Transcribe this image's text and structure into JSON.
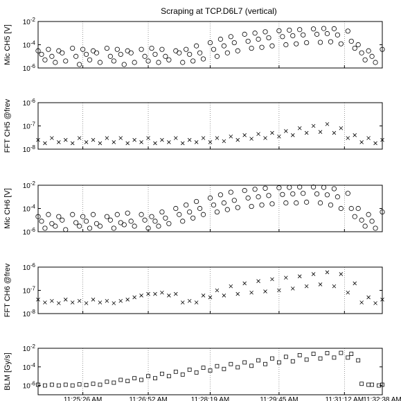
{
  "figure": {
    "title": "Scraping at TCP.D6L7 (vertical)"
  },
  "time_axis": {
    "tick_labels": [
      "11:25:26 AM",
      "11:26:52 AM",
      "11:28:19 AM",
      "11:29:45 AM",
      "11:31:12 AM",
      "11:32:38 AM"
    ]
  },
  "chart_data": [
    {
      "type": "scatter",
      "ylabel": "Mic CH5 [V]",
      "yscale": "log",
      "ylim": [
        1e-06,
        0.01
      ],
      "ytick_labels": [
        "10^-6",
        "10^-4",
        "10^-2"
      ],
      "marker": "circle",
      "grid": "vertical-dotted",
      "series": [
        {
          "x": [
            0.0,
            0.03,
            0.06,
            0.1,
            0.13,
            0.16,
            0.2,
            0.23,
            0.26,
            0.3,
            0.33,
            0.36,
            0.4,
            0.43,
            0.46,
            0.5,
            0.53,
            0.56,
            0.6,
            0.63,
            0.66,
            0.7,
            0.73,
            0.76,
            0.8,
            0.83,
            0.86,
            0.9,
            0.93,
            0.96,
            1.0
          ],
          "values": [
            3e-05,
            4e-05,
            3e-05,
            5e-05,
            4e-05,
            3e-05,
            5e-05,
            4e-05,
            3e-05,
            4e-05,
            5e-05,
            4e-05,
            3e-05,
            4e-05,
            8e-05,
            0.00015,
            0.0003,
            0.0005,
            0.0008,
            0.001,
            0.0013,
            0.0016,
            0.0018,
            0.002,
            0.0023,
            0.0025,
            0.0024,
            0.0015,
            0.0001,
            3e-05,
            4e-05
          ]
        },
        {
          "x": [
            0.01,
            0.04,
            0.07,
            0.11,
            0.14,
            0.17,
            0.21,
            0.24,
            0.27,
            0.31,
            0.34,
            0.37,
            0.41,
            0.44,
            0.47,
            0.51,
            0.54,
            0.57,
            0.61,
            0.64,
            0.67,
            0.71,
            0.74,
            0.77,
            0.81,
            0.84,
            0.87,
            0.91,
            0.94,
            0.97
          ],
          "values": [
            1.5e-05,
            1e-05,
            2e-05,
            1e-05,
            1.5e-05,
            2e-05,
            1e-05,
            1.5e-05,
            2e-05,
            1e-05,
            1.5e-05,
            1e-05,
            2e-05,
            1.5e-05,
            2e-05,
            4e-05,
            8e-05,
            0.00015,
            0.0002,
            0.0003,
            0.0004,
            0.0005,
            0.0006,
            0.0007,
            0.0008,
            0.0009,
            0.0007,
            0.0002,
            2e-05,
            1e-05
          ]
        },
        {
          "x": [
            0.02,
            0.05,
            0.08,
            0.12,
            0.15,
            0.18,
            0.22,
            0.25,
            0.28,
            0.32,
            0.35,
            0.38,
            0.42,
            0.45,
            0.48,
            0.52,
            0.55,
            0.58,
            0.62,
            0.65,
            0.68,
            0.72,
            0.75,
            0.78,
            0.82,
            0.85,
            0.88,
            0.92,
            0.95,
            0.98
          ],
          "values": [
            5e-06,
            3e-06,
            4e-06,
            2e-06,
            5e-06,
            3e-06,
            4e-06,
            2e-06,
            3e-06,
            4e-06,
            3e-06,
            5e-06,
            3e-06,
            4e-06,
            6e-06,
            1e-05,
            2e-05,
            3e-05,
            5e-05,
            6e-05,
            8e-05,
            0.0001,
            0.00012,
            0.00015,
            0.00016,
            0.00018,
            0.00012,
            5e-05,
            5e-06,
            3e-06
          ]
        }
      ]
    },
    {
      "type": "scatter",
      "ylabel": "FFT CH5 @frev",
      "yscale": "log",
      "ylim": [
        1e-08,
        1e-06
      ],
      "ytick_labels": [
        "10^-8",
        "10^-7",
        "10^-6"
      ],
      "marker": "x",
      "grid": "vertical-dotted",
      "series": [
        {
          "x": [
            0.0,
            0.04,
            0.08,
            0.12,
            0.16,
            0.2,
            0.24,
            0.28,
            0.32,
            0.36,
            0.4,
            0.44,
            0.48,
            0.52,
            0.56,
            0.6,
            0.64,
            0.68,
            0.72,
            0.76,
            0.8,
            0.84,
            0.88,
            0.92,
            0.96,
            1.0
          ],
          "values": [
            2.5e-08,
            3e-08,
            2.5e-08,
            3e-08,
            2.5e-08,
            3e-08,
            3e-08,
            2.5e-08,
            3e-08,
            2.5e-08,
            3e-08,
            2.5e-08,
            3e-08,
            3e-08,
            3.5e-08,
            4e-08,
            4.5e-08,
            5e-08,
            6e-08,
            8e-08,
            1e-07,
            1.2e-07,
            8e-08,
            4e-08,
            3e-08,
            2.5e-08
          ]
        },
        {
          "x": [
            0.02,
            0.06,
            0.1,
            0.14,
            0.18,
            0.22,
            0.26,
            0.3,
            0.34,
            0.38,
            0.42,
            0.46,
            0.5,
            0.54,
            0.58,
            0.62,
            0.66,
            0.7,
            0.74,
            0.78,
            0.82,
            0.86,
            0.9,
            0.94,
            0.98
          ],
          "values": [
            1.8e-08,
            2e-08,
            1.8e-08,
            2e-08,
            1.8e-08,
            2e-08,
            1.8e-08,
            2e-08,
            1.8e-08,
            2e-08,
            1.8e-08,
            2e-08,
            2e-08,
            2.2e-08,
            2.5e-08,
            2.8e-08,
            3e-08,
            3.5e-08,
            4e-08,
            5e-08,
            5.5e-08,
            5e-08,
            3e-08,
            2e-08,
            1.8e-08
          ]
        }
      ]
    },
    {
      "type": "scatter",
      "ylabel": "Mic CH6 [V]",
      "yscale": "log",
      "ylim": [
        1e-06,
        0.01
      ],
      "ytick_labels": [
        "10^-6",
        "10^-4",
        "10^-2"
      ],
      "marker": "circle",
      "grid": "vertical-dotted",
      "series": [
        {
          "x": [
            0.0,
            0.03,
            0.06,
            0.1,
            0.13,
            0.16,
            0.2,
            0.23,
            0.26,
            0.3,
            0.33,
            0.36,
            0.4,
            0.43,
            0.46,
            0.5,
            0.53,
            0.56,
            0.6,
            0.63,
            0.66,
            0.7,
            0.73,
            0.76,
            0.8,
            0.83,
            0.86,
            0.9,
            0.93,
            0.96,
            1.0
          ],
          "values": [
            2e-05,
            3e-05,
            2e-05,
            3e-05,
            2e-05,
            3e-05,
            2e-05,
            3e-05,
            4e-05,
            3e-05,
            2e-05,
            5e-05,
            0.0001,
            0.0002,
            0.0004,
            0.0008,
            0.0015,
            0.0025,
            0.0035,
            0.0045,
            0.0055,
            0.006,
            0.0065,
            0.007,
            0.007,
            0.0065,
            0.005,
            0.002,
            0.0001,
            3e-05,
            5e-05
          ]
        },
        {
          "x": [
            0.01,
            0.04,
            0.07,
            0.11,
            0.14,
            0.17,
            0.21,
            0.24,
            0.27,
            0.31,
            0.34,
            0.37,
            0.41,
            0.44,
            0.47,
            0.51,
            0.54,
            0.57,
            0.61,
            0.64,
            0.67,
            0.71,
            0.74,
            0.77,
            0.81,
            0.84,
            0.87,
            0.91,
            0.94,
            0.97
          ],
          "values": [
            8e-06,
            5e-06,
            1e-05,
            6e-06,
            8e-06,
            5e-06,
            1e-05,
            6e-06,
            8e-06,
            1e-05,
            8e-06,
            1.5e-05,
            3e-05,
            5e-05,
            0.0001,
            0.0002,
            0.0003,
            0.0005,
            0.0008,
            0.001,
            0.0013,
            0.0016,
            0.0018,
            0.002,
            0.0018,
            0.0015,
            0.001,
            0.0001,
            1e-05,
            8e-06
          ]
        },
        {
          "x": [
            0.02,
            0.05,
            0.08,
            0.12,
            0.15,
            0.18,
            0.22,
            0.25,
            0.28,
            0.32,
            0.35,
            0.38,
            0.42,
            0.45,
            0.48,
            0.52,
            0.55,
            0.58,
            0.62,
            0.65,
            0.68,
            0.72,
            0.75,
            0.78,
            0.82,
            0.85,
            0.88,
            0.92,
            0.95,
            0.98
          ],
          "values": [
            2e-06,
            3e-06,
            1.5e-06,
            3e-06,
            2e-06,
            3e-06,
            2e-06,
            4e-06,
            3e-06,
            2e-06,
            3e-06,
            5e-06,
            8e-06,
            1.5e-05,
            3e-05,
            5e-05,
            8e-05,
            0.00012,
            0.00015,
            0.0002,
            0.00025,
            0.0003,
            0.0003,
            0.00035,
            0.0003,
            0.0002,
            0.0001,
            2e-05,
            3e-06,
            2e-06
          ]
        }
      ]
    },
    {
      "type": "scatter",
      "ylabel": "FFT CH6 @frev",
      "yscale": "log",
      "ylim": [
        1e-08,
        1e-06
      ],
      "ytick_labels": [
        "10^-8",
        "10^-7",
        "10^-6"
      ],
      "marker": "x",
      "grid": "vertical-dotted",
      "series": [
        {
          "x": [
            0.0,
            0.04,
            0.08,
            0.12,
            0.16,
            0.2,
            0.24,
            0.28,
            0.32,
            0.36,
            0.4,
            0.44,
            0.48,
            0.52,
            0.56,
            0.6,
            0.64,
            0.68,
            0.72,
            0.76,
            0.8,
            0.84,
            0.88,
            0.92,
            0.96,
            1.0
          ],
          "values": [
            4e-08,
            3.5e-08,
            4e-08,
            3.5e-08,
            4e-08,
            3.5e-08,
            3.5e-08,
            5e-08,
            7e-08,
            8e-08,
            7e-08,
            3.5e-08,
            6e-08,
            1e-07,
            1.5e-07,
            2e-07,
            2.5e-07,
            3e-07,
            3.5e-07,
            4e-07,
            5e-07,
            6e-07,
            5e-07,
            2e-07,
            5e-08,
            4e-08
          ]
        },
        {
          "x": [
            0.02,
            0.06,
            0.1,
            0.14,
            0.18,
            0.22,
            0.26,
            0.3,
            0.34,
            0.38,
            0.42,
            0.46,
            0.5,
            0.54,
            0.58,
            0.62,
            0.66,
            0.7,
            0.74,
            0.78,
            0.82,
            0.86,
            0.9,
            0.94,
            0.98
          ],
          "values": [
            3e-08,
            2.8e-08,
            3e-08,
            2.8e-08,
            3e-08,
            2.8e-08,
            4e-08,
            6e-08,
            7e-08,
            6e-08,
            3e-08,
            3e-08,
            5e-08,
            6e-08,
            7e-08,
            8e-08,
            9e-08,
            1e-07,
            1.2e-07,
            1.5e-07,
            1.8e-07,
            1.5e-07,
            8e-08,
            3e-08,
            2.8e-08
          ]
        }
      ]
    },
    {
      "type": "scatter",
      "ylabel": "BLM [Gy/s]",
      "yscale": "log",
      "ylim": [
        1e-07,
        0.01
      ],
      "ytick_labels": [
        "10^-6",
        "10^-4",
        "10^-2"
      ],
      "marker": "square",
      "grid": "vertical-dotted",
      "series": [
        {
          "x": [
            0.0,
            0.04,
            0.08,
            0.12,
            0.16,
            0.2,
            0.24,
            0.28,
            0.32,
            0.36,
            0.4,
            0.44,
            0.48,
            0.52,
            0.56,
            0.6,
            0.64,
            0.68,
            0.72,
            0.76,
            0.8,
            0.84,
            0.88,
            0.91,
            0.94,
            0.97,
            1.0
          ],
          "values": [
            1.2e-06,
            1.2e-06,
            1.2e-06,
            1.3e-06,
            1.5e-06,
            2.5e-06,
            4e-06,
            6e-06,
            1e-05,
            1.8e-05,
            3e-05,
            5e-05,
            8e-05,
            0.00012,
            0.0002,
            0.0003,
            0.0005,
            0.0008,
            0.0012,
            0.0018,
            0.0025,
            0.003,
            0.0032,
            0.0025,
            1.5e-06,
            1.2e-06,
            1.2e-06
          ]
        },
        {
          "x": [
            0.02,
            0.06,
            0.1,
            0.14,
            0.18,
            0.22,
            0.26,
            0.3,
            0.34,
            0.38,
            0.42,
            0.46,
            0.5,
            0.54,
            0.58,
            0.62,
            0.66,
            0.7,
            0.74,
            0.78,
            0.82,
            0.86,
            0.9,
            0.93,
            0.96,
            0.99
          ],
          "values": [
            1e-06,
            1e-06,
            1e-06,
            1.1e-06,
            1.2e-06,
            2e-06,
            3e-06,
            4e-06,
            6e-06,
            1e-05,
            1.5e-05,
            2.5e-05,
            4e-05,
            6e-05,
            9e-05,
            0.00013,
            0.0002,
            0.0003,
            0.0004,
            0.0006,
            0.0008,
            0.001,
            0.001,
            0.0005,
            1.2e-06,
            1e-06
          ]
        }
      ]
    }
  ]
}
